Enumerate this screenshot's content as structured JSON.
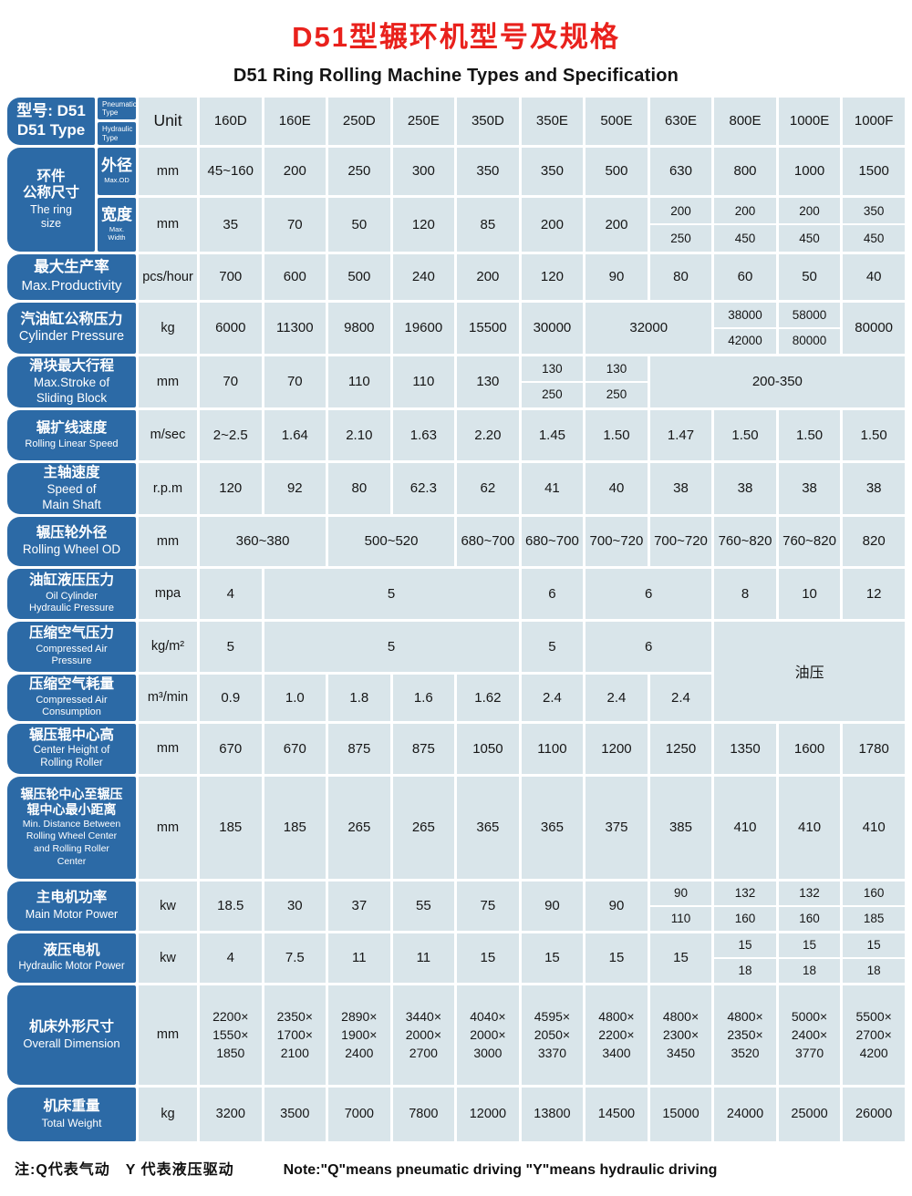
{
  "title_cn": "D51型辗环机型号及规格",
  "title_en": "D51 Ring Rolling Machine Types and Specification",
  "footer": {
    "note_cn": "注:Q代表气动　Y 代表液压驱动",
    "note_en": "Note:\"Q\"means pneumatic driving \"Y\"means hydraulic driving"
  },
  "colors": {
    "label_blue": "#2c6aa6",
    "cell_bg": "#d9e5ea",
    "title_red": "#e9211c"
  },
  "models": [
    "160D",
    "160E",
    "250D",
    "250E",
    "350D",
    "350E",
    "500E",
    "630E",
    "800E",
    "1000E",
    "1000F"
  ],
  "table": {
    "rows": [
      {
        "key": "models",
        "cells": [
          {
            "k": "label",
            "cn": "型号: D51",
            "en": "D51 Type"
          },
          {
            "k": "subsplit",
            "a": "Pneumatic\nType",
            "b": "Hydraulic\nType"
          },
          {
            "k": "unit",
            "t": "Unit"
          },
          {
            "k": "head",
            "t": "160D"
          },
          {
            "k": "head",
            "t": "160E"
          },
          {
            "k": "head",
            "t": "250D"
          },
          {
            "k": "head",
            "t": "250E"
          },
          {
            "k": "head",
            "t": "350D"
          },
          {
            "k": "head",
            "t": "350E"
          },
          {
            "k": "head",
            "t": "500E"
          },
          {
            "k": "head",
            "t": "630E"
          },
          {
            "k": "head",
            "t": "800E"
          },
          {
            "k": "head",
            "t": "1000E"
          },
          {
            "k": "head",
            "t": "1000F"
          }
        ]
      },
      {
        "key": "ring_od",
        "cells": [
          {
            "k": "label",
            "cn": "环件\n公称尺寸",
            "en": "The ring\nsize",
            "r": 2
          },
          {
            "k": "sub",
            "cn": "外径",
            "en": "Max.OD"
          },
          {
            "k": "unit",
            "t": "mm"
          },
          {
            "k": "d",
            "t": "45~160"
          },
          {
            "k": "d",
            "t": "200"
          },
          {
            "k": "d",
            "t": "250"
          },
          {
            "k": "d",
            "t": "300"
          },
          {
            "k": "d",
            "t": "350"
          },
          {
            "k": "d",
            "t": "350"
          },
          {
            "k": "d",
            "t": "500"
          },
          {
            "k": "d",
            "t": "630"
          },
          {
            "k": "d",
            "t": "800"
          },
          {
            "k": "d",
            "t": "1000"
          },
          {
            "k": "d",
            "t": "1500"
          }
        ]
      },
      {
        "key": "ring_width",
        "cells": [
          {
            "k": "sub",
            "cn": "宽度",
            "en": "Max.\nWidth"
          },
          {
            "k": "unit",
            "t": "mm"
          },
          {
            "k": "d",
            "t": "35"
          },
          {
            "k": "d",
            "t": "70"
          },
          {
            "k": "d",
            "t": "50"
          },
          {
            "k": "d",
            "t": "120"
          },
          {
            "k": "d",
            "t": "85"
          },
          {
            "k": "d",
            "t": "200"
          },
          {
            "k": "d",
            "t": "200"
          },
          {
            "k": "d",
            "a": "200",
            "b": "250"
          },
          {
            "k": "d",
            "a": "200",
            "b": "450"
          },
          {
            "k": "d",
            "a": "200",
            "b": "450"
          },
          {
            "k": "d",
            "a": "350",
            "b": "450"
          }
        ]
      },
      {
        "key": "prod",
        "cells": [
          {
            "k": "label",
            "cn": "最大生产率",
            "en": "Max.Productivity",
            "c": 2
          },
          {
            "k": "unit",
            "t": "pcs/hour"
          },
          {
            "k": "d",
            "t": "700"
          },
          {
            "k": "d",
            "t": "600"
          },
          {
            "k": "d",
            "t": "500"
          },
          {
            "k": "d",
            "t": "240"
          },
          {
            "k": "d",
            "t": "200"
          },
          {
            "k": "d",
            "t": "120"
          },
          {
            "k": "d",
            "t": "90"
          },
          {
            "k": "d",
            "t": "80"
          },
          {
            "k": "d",
            "t": "60"
          },
          {
            "k": "d",
            "t": "50"
          },
          {
            "k": "d",
            "t": "40"
          }
        ]
      },
      {
        "key": "cyl",
        "cells": [
          {
            "k": "label",
            "cn": "汽油缸公称压力",
            "en": "Cylinder Pressure",
            "c": 2
          },
          {
            "k": "unit",
            "t": "kg"
          },
          {
            "k": "d",
            "t": "6000"
          },
          {
            "k": "d",
            "t": "11300"
          },
          {
            "k": "d",
            "t": "9800"
          },
          {
            "k": "d",
            "t": "19600"
          },
          {
            "k": "d",
            "t": "15500"
          },
          {
            "k": "d",
            "t": "30000"
          },
          {
            "k": "d",
            "t": "32000",
            "c": 2
          },
          {
            "k": "d",
            "a": "38000",
            "b": "42000"
          },
          {
            "k": "d",
            "a": "58000",
            "b": "80000"
          },
          {
            "k": "d",
            "t": "80000"
          }
        ]
      },
      {
        "key": "stroke",
        "cells": [
          {
            "k": "label",
            "cn": "滑块最大行程",
            "en": "Max.Stroke of\nSliding Block",
            "c": 2
          },
          {
            "k": "unit",
            "t": "mm"
          },
          {
            "k": "d",
            "t": "70"
          },
          {
            "k": "d",
            "t": "70"
          },
          {
            "k": "d",
            "t": "110"
          },
          {
            "k": "d",
            "t": "110"
          },
          {
            "k": "d",
            "t": "130"
          },
          {
            "k": "d",
            "a": "130",
            "b": "250"
          },
          {
            "k": "d",
            "a": "130",
            "b": "250"
          },
          {
            "k": "d",
            "t": "200-350",
            "c": 4
          }
        ]
      },
      {
        "key": "linspeed",
        "cells": [
          {
            "k": "label",
            "cn": "辗扩线速度",
            "en": "Rolling Linear Speed",
            "c": 2
          },
          {
            "k": "unit",
            "t": "m/sec"
          },
          {
            "k": "d",
            "t": "2~2.5"
          },
          {
            "k": "d",
            "t": "1.64"
          },
          {
            "k": "d",
            "t": "2.10"
          },
          {
            "k": "d",
            "t": "1.63"
          },
          {
            "k": "d",
            "t": "2.20"
          },
          {
            "k": "d",
            "t": "1.45"
          },
          {
            "k": "d",
            "t": "1.50"
          },
          {
            "k": "d",
            "t": "1.47"
          },
          {
            "k": "d",
            "t": "1.50"
          },
          {
            "k": "d",
            "t": "1.50"
          },
          {
            "k": "d",
            "t": "1.50"
          }
        ]
      },
      {
        "key": "shaft",
        "cells": [
          {
            "k": "label",
            "cn": "主轴速度",
            "en": "Speed of\nMain Shaft",
            "c": 2
          },
          {
            "k": "unit",
            "t": "r.p.m"
          },
          {
            "k": "d",
            "t": "120"
          },
          {
            "k": "d",
            "t": "92"
          },
          {
            "k": "d",
            "t": "80"
          },
          {
            "k": "d",
            "t": "62.3"
          },
          {
            "k": "d",
            "t": "62"
          },
          {
            "k": "d",
            "t": "41"
          },
          {
            "k": "d",
            "t": "40"
          },
          {
            "k": "d",
            "t": "38"
          },
          {
            "k": "d",
            "t": "38"
          },
          {
            "k": "d",
            "t": "38"
          },
          {
            "k": "d",
            "t": "38"
          }
        ]
      },
      {
        "key": "wheelod",
        "cells": [
          {
            "k": "label",
            "cn": "辗压轮外径",
            "en": "Rolling Wheel OD",
            "c": 2
          },
          {
            "k": "unit",
            "t": "mm"
          },
          {
            "k": "d",
            "t": "360~380",
            "c": 2
          },
          {
            "k": "d",
            "t": "500~520",
            "c": 2
          },
          {
            "k": "d",
            "t": "680~700"
          },
          {
            "k": "d",
            "t": "680~700"
          },
          {
            "k": "d",
            "t": "700~720"
          },
          {
            "k": "d",
            "t": "700~720"
          },
          {
            "k": "d",
            "t": "760~820"
          },
          {
            "k": "d",
            "t": "760~820"
          },
          {
            "k": "d",
            "t": "820"
          }
        ]
      },
      {
        "key": "oilpress",
        "cells": [
          {
            "k": "label",
            "cn": "油缸液压压力",
            "en": "Oil Cylinder\nHydraulic Pressure",
            "c": 2
          },
          {
            "k": "unit",
            "t": "mpa"
          },
          {
            "k": "d",
            "t": "4"
          },
          {
            "k": "d",
            "t": "5",
            "c": 4
          },
          {
            "k": "d",
            "t": "6"
          },
          {
            "k": "d",
            "t": "6",
            "c": 2
          },
          {
            "k": "d",
            "t": "8"
          },
          {
            "k": "d",
            "t": "10"
          },
          {
            "k": "d",
            "t": "12"
          }
        ]
      },
      {
        "key": "airpress",
        "cells": [
          {
            "k": "label",
            "cn": "压缩空气压力",
            "en": "Compressed Air\nPressure",
            "c": 2
          },
          {
            "k": "unit",
            "t": "kg/m²"
          },
          {
            "k": "d",
            "t": "5"
          },
          {
            "k": "d",
            "t": "5",
            "c": 4
          },
          {
            "k": "d",
            "t": "5"
          },
          {
            "k": "d",
            "t": "6",
            "c": 2
          },
          {
            "k": "d",
            "t": "油压",
            "c": 3,
            "r": 2,
            "cls": "oil"
          }
        ]
      },
      {
        "key": "aircons",
        "cells": [
          {
            "k": "label",
            "cn": "压缩空气耗量",
            "en": "Compressed Air\nConsumption",
            "c": 2
          },
          {
            "k": "unit",
            "t": "m³/min"
          },
          {
            "k": "d",
            "t": "0.9"
          },
          {
            "k": "d",
            "t": "1.0"
          },
          {
            "k": "d",
            "t": "1.8"
          },
          {
            "k": "d",
            "t": "1.6"
          },
          {
            "k": "d",
            "t": "1.62"
          },
          {
            "k": "d",
            "t": "2.4"
          },
          {
            "k": "d",
            "t": "2.4"
          },
          {
            "k": "d",
            "t": "2.4"
          }
        ]
      },
      {
        "key": "centerheight",
        "cells": [
          {
            "k": "label",
            "cn": "辗压辊中心高",
            "en": "Center Height of\nRolling Roller",
            "c": 2
          },
          {
            "k": "unit",
            "t": "mm"
          },
          {
            "k": "d",
            "t": "670"
          },
          {
            "k": "d",
            "t": "670"
          },
          {
            "k": "d",
            "t": "875"
          },
          {
            "k": "d",
            "t": "875"
          },
          {
            "k": "d",
            "t": "1050"
          },
          {
            "k": "d",
            "t": "1100"
          },
          {
            "k": "d",
            "t": "1200"
          },
          {
            "k": "d",
            "t": "1250"
          },
          {
            "k": "d",
            "t": "1350"
          },
          {
            "k": "d",
            "t": "1600"
          },
          {
            "k": "d",
            "t": "1780"
          }
        ]
      },
      {
        "key": "mindist",
        "cells": [
          {
            "k": "label",
            "cn": "辗压轮中心至辗压\n辊中心最小距离",
            "en": "Min. Distance Between\nRolling Wheel Center\nand Rolling Roller\nCenter",
            "c": 2
          },
          {
            "k": "unit",
            "t": "mm"
          },
          {
            "k": "d",
            "t": "185"
          },
          {
            "k": "d",
            "t": "185"
          },
          {
            "k": "d",
            "t": "265"
          },
          {
            "k": "d",
            "t": "265"
          },
          {
            "k": "d",
            "t": "365"
          },
          {
            "k": "d",
            "t": "365"
          },
          {
            "k": "d",
            "t": "375"
          },
          {
            "k": "d",
            "t": "385"
          },
          {
            "k": "d",
            "t": "410"
          },
          {
            "k": "d",
            "t": "410"
          },
          {
            "k": "d",
            "t": "410"
          }
        ]
      },
      {
        "key": "mainmotor",
        "cells": [
          {
            "k": "label",
            "cn": "主电机功率",
            "en": "Main Motor Power",
            "c": 2
          },
          {
            "k": "unit",
            "t": "kw"
          },
          {
            "k": "d",
            "t": "18.5"
          },
          {
            "k": "d",
            "t": "30"
          },
          {
            "k": "d",
            "t": "37"
          },
          {
            "k": "d",
            "t": "55"
          },
          {
            "k": "d",
            "t": "75"
          },
          {
            "k": "d",
            "t": "90"
          },
          {
            "k": "d",
            "t": "90"
          },
          {
            "k": "d",
            "a": "90",
            "b": "110"
          },
          {
            "k": "d",
            "a": "132",
            "b": "160"
          },
          {
            "k": "d",
            "a": "132",
            "b": "160"
          },
          {
            "k": "d",
            "a": "160",
            "b": "185"
          }
        ]
      },
      {
        "key": "hydmotor",
        "cells": [
          {
            "k": "label",
            "cn": "液压电机",
            "en": "Hydraulic Motor Power",
            "c": 2
          },
          {
            "k": "unit",
            "t": "kw"
          },
          {
            "k": "d",
            "t": "4"
          },
          {
            "k": "d",
            "t": "7.5"
          },
          {
            "k": "d",
            "t": "11"
          },
          {
            "k": "d",
            "t": "11"
          },
          {
            "k": "d",
            "t": "15"
          },
          {
            "k": "d",
            "t": "15"
          },
          {
            "k": "d",
            "t": "15"
          },
          {
            "k": "d",
            "t": "15"
          },
          {
            "k": "d",
            "a": "15",
            "b": "18"
          },
          {
            "k": "d",
            "a": "15",
            "b": "18"
          },
          {
            "k": "d",
            "a": "15",
            "b": "18"
          }
        ]
      },
      {
        "key": "dims",
        "cells": [
          {
            "k": "label",
            "cn": "机床外形尺寸",
            "en": "Overall Dimension",
            "c": 2
          },
          {
            "k": "unit",
            "t": "mm"
          },
          {
            "k": "d",
            "t": "2200×\n1550×\n1850"
          },
          {
            "k": "d",
            "t": "2350×\n1700×\n2100"
          },
          {
            "k": "d",
            "t": "2890×\n1900×\n2400"
          },
          {
            "k": "d",
            "t": "3440×\n2000×\n2700"
          },
          {
            "k": "d",
            "t": "4040×\n2000×\n3000"
          },
          {
            "k": "d",
            "t": "4595×\n2050×\n3370"
          },
          {
            "k": "d",
            "t": "4800×\n2200×\n3400"
          },
          {
            "k": "d",
            "t": "4800×\n2300×\n3450"
          },
          {
            "k": "d",
            "t": "4800×\n2350×\n3520"
          },
          {
            "k": "d",
            "t": "5000×\n2400×\n3770"
          },
          {
            "k": "d",
            "t": "5500×\n2700×\n4200"
          }
        ]
      },
      {
        "key": "weight",
        "cells": [
          {
            "k": "label",
            "cn": "机床重量",
            "en": "Total Weight",
            "c": 2
          },
          {
            "k": "unit",
            "t": "kg"
          },
          {
            "k": "d",
            "t": "3200"
          },
          {
            "k": "d",
            "t": "3500"
          },
          {
            "k": "d",
            "t": "7000"
          },
          {
            "k": "d",
            "t": "7800"
          },
          {
            "k": "d",
            "t": "12000"
          },
          {
            "k": "d",
            "t": "13800"
          },
          {
            "k": "d",
            "t": "14500"
          },
          {
            "k": "d",
            "t": "15000"
          },
          {
            "k": "d",
            "t": "24000"
          },
          {
            "k": "d",
            "t": "25000"
          },
          {
            "k": "d",
            "t": "26000"
          }
        ]
      }
    ]
  }
}
